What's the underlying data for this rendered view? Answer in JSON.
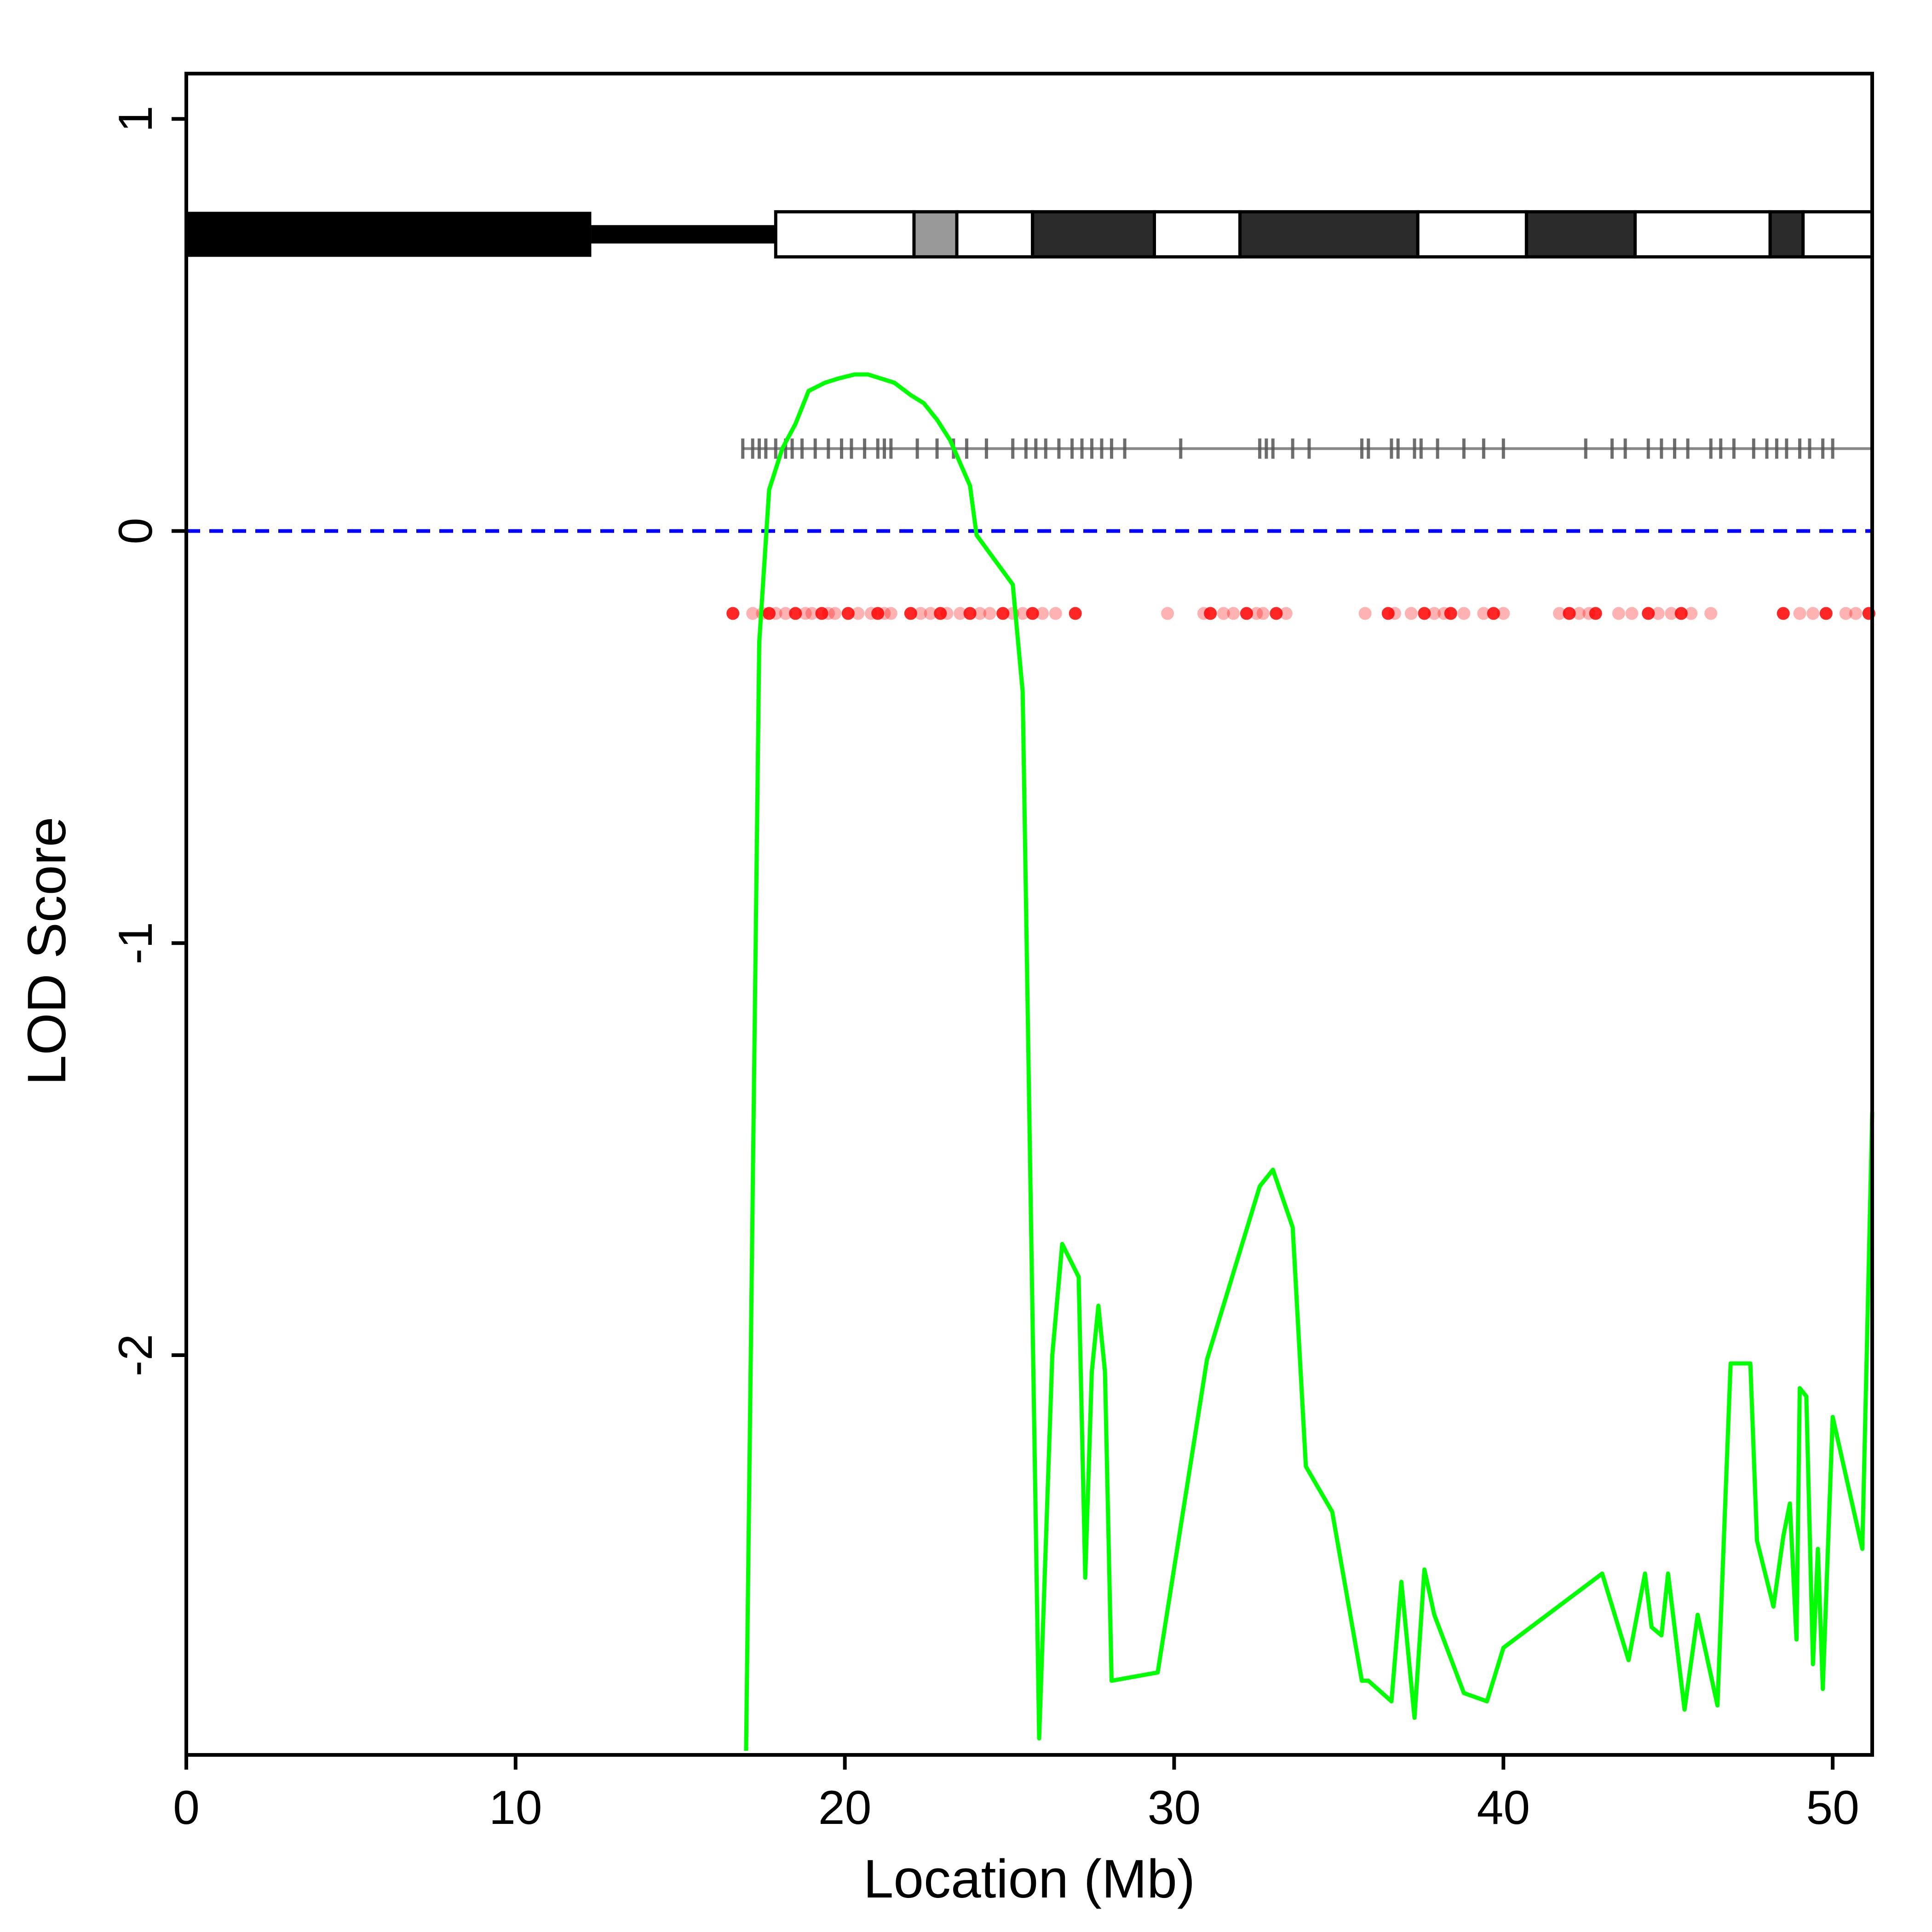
{
  "chart_data": {
    "type": "line",
    "title": "",
    "xlabel": "Location (Mb)",
    "ylabel": "LOD Score",
    "xlim": [
      0,
      51.2
    ],
    "ylim": [
      -2.97,
      1.11
    ],
    "xticks": [
      0,
      10,
      20,
      30,
      40,
      50
    ],
    "yticks": [
      1,
      0,
      -1,
      -2
    ],
    "grid": false,
    "threshold": {
      "value": 0,
      "color": "#0000ff",
      "style": "dashed"
    },
    "series": [
      {
        "color": "#00ff00",
        "x": [
          17.0,
          17.4,
          17.7,
          18.1,
          18.5,
          18.9,
          19.4,
          19.8,
          20.3,
          20.7,
          21.1,
          21.5,
          22.0,
          22.4,
          22.8,
          23.2,
          23.8,
          24.0,
          25.1,
          25.4,
          25.9,
          26.3,
          26.6,
          27.1,
          27.3,
          27.5,
          27.7,
          27.9,
          28.1,
          29.5,
          31.0,
          32.6,
          33.0,
          33.6,
          34.0,
          34.8,
          35.7,
          35.9,
          36.6,
          36.9,
          37.3,
          37.6,
          37.9,
          38.8,
          39.5,
          40.0,
          43.0,
          43.8,
          44.3,
          44.5,
          44.8,
          45.0,
          45.5,
          45.9,
          46.5,
          46.9,
          47.5,
          47.7,
          48.2,
          48.5,
          48.7,
          48.9,
          49.0,
          49.2,
          49.4,
          49.55,
          49.7,
          50.0,
          50.9,
          51.2
        ],
        "y": [
          -2.96,
          -0.27,
          0.1,
          0.2,
          0.26,
          0.34,
          0.36,
          0.37,
          0.38,
          0.38,
          0.37,
          0.36,
          0.33,
          0.31,
          0.27,
          0.22,
          0.11,
          -0.01,
          -0.13,
          -0.39,
          -2.93,
          -2.0,
          -1.73,
          -1.81,
          -2.54,
          -2.04,
          -1.88,
          -2.04,
          -2.79,
          -2.77,
          -2.01,
          -1.59,
          -1.55,
          -1.69,
          -2.27,
          -2.38,
          -2.79,
          -2.79,
          -2.84,
          -2.55,
          -2.88,
          -2.52,
          -2.63,
          -2.82,
          -2.84,
          -2.71,
          -2.53,
          -2.74,
          -2.53,
          -2.66,
          -2.68,
          -2.53,
          -2.86,
          -2.63,
          -2.85,
          -2.02,
          -2.02,
          -2.45,
          -2.61,
          -2.44,
          -2.36,
          -2.69,
          -2.08,
          -2.1,
          -2.75,
          -2.47,
          -2.81,
          -2.15,
          -2.47,
          -1.41
        ]
      }
    ],
    "cytoband": {
      "y": 0.72,
      "acen_end": 12.3,
      "stalk_end": 17.9,
      "bands": [
        {
          "start": 17.9,
          "end": 22.1,
          "color": "#ffffff"
        },
        {
          "start": 22.1,
          "end": 23.4,
          "color": "#999999"
        },
        {
          "start": 23.4,
          "end": 25.7,
          "color": "#ffffff"
        },
        {
          "start": 25.7,
          "end": 29.4,
          "color": "#2b2b2b"
        },
        {
          "start": 29.4,
          "end": 32.0,
          "color": "#ffffff"
        },
        {
          "start": 32.0,
          "end": 37.4,
          "color": "#2b2b2b"
        },
        {
          "start": 37.4,
          "end": 40.7,
          "color": "#ffffff"
        },
        {
          "start": 40.7,
          "end": 44.0,
          "color": "#2b2b2b"
        },
        {
          "start": 44.0,
          "end": 48.1,
          "color": "#ffffff"
        },
        {
          "start": 48.1,
          "end": 49.1,
          "color": "#2b2b2b"
        },
        {
          "start": 49.1,
          "end": 51.2,
          "color": "#ffffff"
        }
      ]
    },
    "markers": {
      "y": 0.2,
      "color": "#555555",
      "x": [
        16.9,
        17.2,
        17.4,
        17.6,
        17.9,
        18.2,
        18.4,
        18.7,
        19.1,
        19.5,
        19.9,
        20.2,
        20.6,
        21.0,
        21.2,
        21.4,
        22.2,
        22.8,
        23.3,
        23.7,
        24.3,
        25.1,
        25.5,
        25.8,
        26.1,
        26.5,
        26.9,
        27.2,
        27.5,
        27.8,
        28.1,
        28.5,
        30.2,
        32.6,
        32.8,
        33.0,
        33.6,
        34.1,
        35.7,
        35.9,
        36.6,
        36.8,
        37.3,
        37.5,
        38.0,
        38.8,
        39.4,
        40.0,
        42.5,
        43.3,
        43.7,
        44.4,
        44.8,
        45.2,
        45.6,
        46.3,
        46.6,
        47.0,
        47.6,
        48.0,
        48.3,
        48.6,
        49.0,
        49.3,
        49.7,
        50.0,
        51.2
      ]
    },
    "snps": {
      "y": -0.2,
      "color": "#ff0000",
      "x": [
        16.6,
        17.2,
        17.5,
        17.7,
        17.9,
        18.2,
        18.5,
        18.8,
        19.0,
        19.3,
        19.5,
        19.7,
        20.1,
        20.4,
        20.8,
        21.0,
        21.2,
        21.4,
        22.0,
        22.3,
        22.6,
        22.9,
        23.1,
        23.5,
        23.8,
        24.1,
        24.4,
        24.8,
        25.1,
        25.4,
        25.7,
        26.0,
        26.4,
        27.0,
        29.8,
        30.9,
        31.1,
        31.5,
        31.8,
        32.2,
        32.5,
        32.7,
        33.1,
        33.4,
        35.8,
        36.5,
        36.7,
        37.2,
        37.6,
        37.9,
        38.2,
        38.4,
        38.8,
        39.4,
        39.7,
        40.0,
        41.7,
        42.0,
        42.3,
        42.6,
        42.8,
        43.5,
        43.9,
        44.4,
        44.7,
        45.1,
        45.4,
        45.7,
        46.3,
        48.5,
        49.0,
        49.4,
        49.8,
        50.4,
        50.7,
        51.1
      ]
    }
  }
}
